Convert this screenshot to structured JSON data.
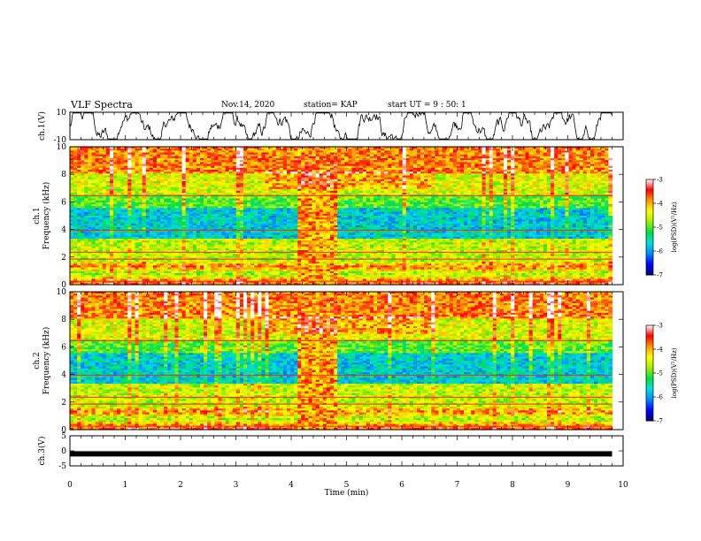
{
  "header": {
    "title": "VLF Spectra",
    "date": "Nov.14, 2020",
    "station": "station= KAP",
    "start": "start  UT =  9 : 50: 1"
  },
  "chart_data": [
    {
      "type": "line",
      "name": "ch1-waveform",
      "ylabel": "ch.1(V)",
      "ylim": [
        -10,
        10
      ],
      "yticks": [
        "10",
        "-10"
      ],
      "xlim": [
        0,
        10
      ],
      "color": "#000000"
    },
    {
      "type": "heatmap",
      "name": "ch1-spectrogram",
      "ylabel": "ch.1\nFrequency (kHz)",
      "ylim": [
        0,
        10
      ],
      "yticks": [
        "0",
        "2",
        "4",
        "6",
        "8",
        "10"
      ],
      "xlim": [
        0,
        10
      ],
      "data_extent_min": 9.8,
      "burst_interval_min": [
        4.15,
        4.8
      ],
      "colorbar": {
        "label": "log(PSD)(V²/Hz)",
        "range": [
          -7,
          -3
        ],
        "ticks": [
          "-3",
          "-4",
          "-5",
          "-6",
          "-7"
        ]
      }
    },
    {
      "type": "heatmap",
      "name": "ch2-spectrogram",
      "ylabel": "ch.2\nFrequency (kHz)",
      "ylim": [
        0,
        10
      ],
      "yticks": [
        "0",
        "2",
        "4",
        "6",
        "8",
        "10"
      ],
      "xlim": [
        0,
        10
      ],
      "data_extent_min": 9.8,
      "burst_interval_min": [
        4.15,
        4.8
      ],
      "colorbar": {
        "label": "log(PSD)(V²/Hz)",
        "range": [
          -7,
          -3
        ],
        "ticks": [
          "-3",
          "-4",
          "-5",
          "-6",
          "-7"
        ]
      }
    },
    {
      "type": "line",
      "name": "ch3-waveform",
      "ylabel": "ch.3(V)",
      "ylim": [
        -5,
        5
      ],
      "yticks": [
        "5",
        "0",
        "-5"
      ],
      "xlim": [
        0,
        10
      ],
      "xlabel": "Time (min)",
      "xticks": [
        "0",
        "1",
        "2",
        "3",
        "4",
        "5",
        "6",
        "7",
        "8",
        "9",
        "10"
      ],
      "level_v": -1
    }
  ],
  "colors": {
    "scale": [
      "#00007a",
      "#0000ff",
      "#0088ff",
      "#00e0e0",
      "#00e040",
      "#a0f000",
      "#ffff00",
      "#ff9900",
      "#ff0000",
      "#ffffff"
    ]
  }
}
